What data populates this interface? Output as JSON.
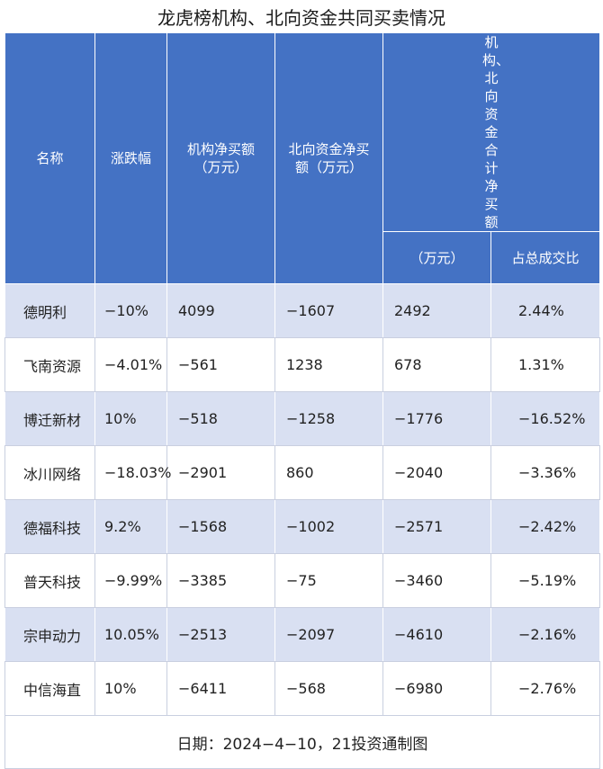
{
  "title": "龙虎榜机构、北向资金共同买卖情况",
  "headers": {
    "name": "名称",
    "change": "涨跌幅",
    "inst": "机构净买额（万元）",
    "north": "北向资金净买额（万元）",
    "combined": "机构、北向资金合计净买额",
    "combined_unit": "（万元）",
    "ratio": "占总成交比"
  },
  "rows": [
    {
      "name": "德明利",
      "change": "−10%",
      "inst": "4099",
      "north": "−1607",
      "combined": "2492",
      "ratio": "2.44%"
    },
    {
      "name": "飞南资源",
      "change": "−4.01%",
      "inst": "−561",
      "north": "1238",
      "combined": "678",
      "ratio": "1.31%"
    },
    {
      "name": "博迁新材",
      "change": "10%",
      "inst": "−518",
      "north": "−1258",
      "combined": "−1776",
      "ratio": "−16.52%"
    },
    {
      "name": "冰川网络",
      "change": "−18.03%",
      "inst": "−2901",
      "north": "860",
      "combined": "−2040",
      "ratio": "−3.36%"
    },
    {
      "name": "德福科技",
      "change": "9.2%",
      "inst": "−1568",
      "north": "−1002",
      "combined": "−2571",
      "ratio": "−2.42%"
    },
    {
      "name": "普天科技",
      "change": "−9.99%",
      "inst": "−3385",
      "north": "−75",
      "combined": "−3460",
      "ratio": "−5.19%"
    },
    {
      "name": "宗申动力",
      "change": "10.05%",
      "inst": "−2513",
      "north": "−2097",
      "combined": "−4610",
      "ratio": "−2.16%"
    },
    {
      "name": "中信海直",
      "change": "10%",
      "inst": "−6411",
      "north": "−568",
      "combined": "−6980",
      "ratio": "−2.76%"
    }
  ],
  "footer": "日期：2024−4−10，21投资通制图"
}
